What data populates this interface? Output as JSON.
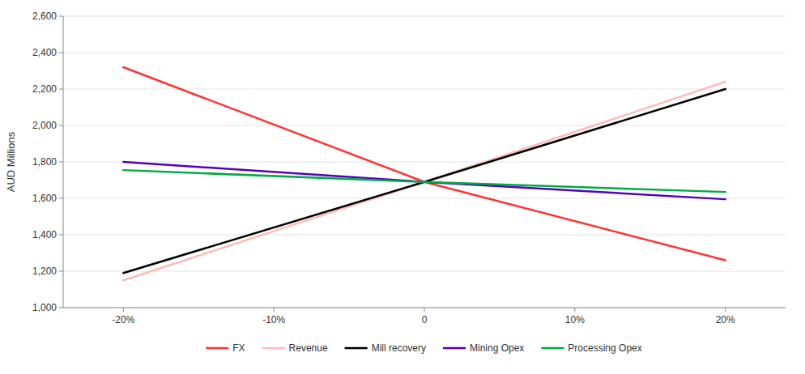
{
  "chart_data": {
    "type": "line",
    "ylabel": "AUD Millions",
    "x": [
      -20,
      0,
      20
    ],
    "xlim": [
      -24,
      24
    ],
    "xticks": [
      {
        "value": -20,
        "label": "-20%"
      },
      {
        "value": -10,
        "label": "-10%"
      },
      0,
      {
        "value": 10,
        "label": "10%"
      },
      {
        "value": 20,
        "label": "20%"
      }
    ],
    "ylim": [
      1000,
      2600
    ],
    "yticks": [
      {
        "value": 1000,
        "label": "1,000"
      },
      {
        "value": 1200,
        "label": "1,200"
      },
      {
        "value": 1400,
        "label": "1,400"
      },
      {
        "value": 1600,
        "label": "1,600"
      },
      {
        "value": 1800,
        "label": "1,800"
      },
      {
        "value": 2000,
        "label": "2,000"
      },
      {
        "value": 2200,
        "label": "2,200"
      },
      {
        "value": 2400,
        "label": "2,400"
      },
      {
        "value": 2600,
        "label": "2,600"
      }
    ],
    "grid": true,
    "legend": "bottom",
    "series": [
      {
        "name": "FX",
        "color": "#FF3333",
        "values": [
          2320,
          1690,
          1260
        ]
      },
      {
        "name": "Revenue",
        "color": "#FFBBBB",
        "values": [
          1150,
          1690,
          2240
        ]
      },
      {
        "name": "Mill recovery",
        "color": "#000000",
        "values": [
          1190,
          1690,
          2200
        ]
      },
      {
        "name": "Mining Opex",
        "color": "#5500BB",
        "values": [
          1800,
          1690,
          1595
        ]
      },
      {
        "name": "Processing Opex",
        "color": "#00AA44",
        "values": [
          1755,
          1690,
          1635
        ]
      }
    ]
  }
}
